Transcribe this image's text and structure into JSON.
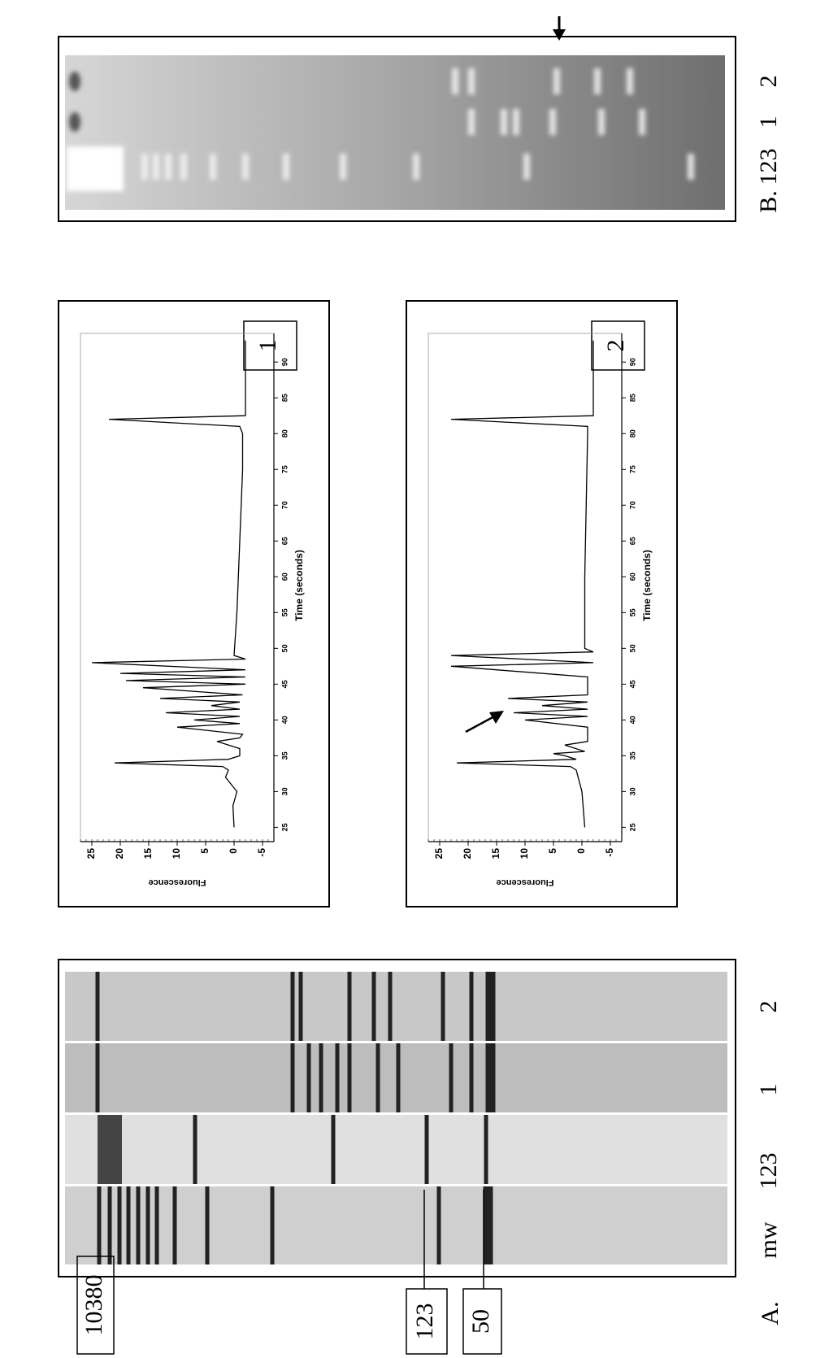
{
  "panel_a": {
    "label": "A.",
    "lanes": [
      "mw",
      "123",
      "1",
      "2"
    ],
    "markers": [
      "10380",
      "123",
      "50"
    ]
  },
  "panel_b": {
    "label": "B.",
    "lanes": [
      "123",
      "1",
      "2"
    ]
  },
  "chart_data": [
    {
      "type": "line",
      "panel_label": "1",
      "y_label": "Fluorescence",
      "x_label": "Time (seconds)",
      "xlim": [
        23,
        94
      ],
      "ylim": [
        -7,
        27
      ],
      "color": "#000000",
      "xticks": [
        25,
        30,
        35,
        40,
        45,
        50,
        55,
        60,
        65,
        70,
        75,
        80,
        85,
        90
      ],
      "yticks": [
        25,
        20,
        15,
        10,
        5,
        0,
        -5
      ],
      "x": [
        25,
        28,
        30,
        31,
        32,
        33,
        33.5,
        34,
        34.5,
        35,
        36,
        37,
        37.5,
        38,
        39,
        39.5,
        40,
        40.5,
        41,
        41.5,
        42,
        42.5,
        43,
        43.5,
        44.5,
        45,
        45.5,
        46,
        46.5,
        47,
        48,
        48.5,
        49,
        55,
        65,
        75,
        80,
        81,
        82,
        82.5,
        83,
        85,
        90,
        93
      ],
      "values": [
        0,
        0.2,
        -0.5,
        0.5,
        1.5,
        1,
        2,
        21,
        1,
        -1,
        -1,
        3,
        -1,
        -1.5,
        10,
        -1,
        7,
        -1,
        12,
        -1,
        4,
        -1,
        13,
        -1.5,
        16,
        -2,
        19,
        -2,
        20,
        -2,
        25,
        -2,
        0,
        -0.5,
        -1,
        -1.5,
        -1.5,
        -1,
        22,
        -2,
        -2,
        -2,
        -2,
        -2
      ]
    },
    {
      "type": "line",
      "panel_label": "2",
      "y_label": "Fluorescence",
      "x_label": "Time (seconds)",
      "xlim": [
        23,
        94
      ],
      "ylim": [
        -7,
        27
      ],
      "color": "#000000",
      "xticks": [
        25,
        30,
        35,
        40,
        45,
        50,
        55,
        60,
        65,
        70,
        75,
        80,
        85,
        90
      ],
      "yticks": [
        25,
        20,
        15,
        10,
        5,
        0,
        -5
      ],
      "x": [
        25,
        30,
        33,
        33.5,
        34,
        34.5,
        35,
        35.3,
        35.6,
        36.5,
        37,
        39,
        40,
        40.5,
        41,
        41.5,
        42,
        42.5,
        43,
        43.5,
        46,
        47.5,
        48,
        49,
        49.5,
        50,
        60,
        80,
        81,
        82,
        82.5,
        85,
        93
      ],
      "values": [
        -0.5,
        0,
        1,
        2,
        22,
        1,
        3,
        5,
        -0.5,
        3,
        -1,
        -1,
        10,
        -1,
        12,
        -1,
        7,
        -1,
        13,
        -1,
        -1,
        23,
        -2,
        23,
        -2,
        -0.5,
        -0.5,
        -1,
        -1,
        23,
        -2,
        -2,
        -2
      ]
    }
  ]
}
